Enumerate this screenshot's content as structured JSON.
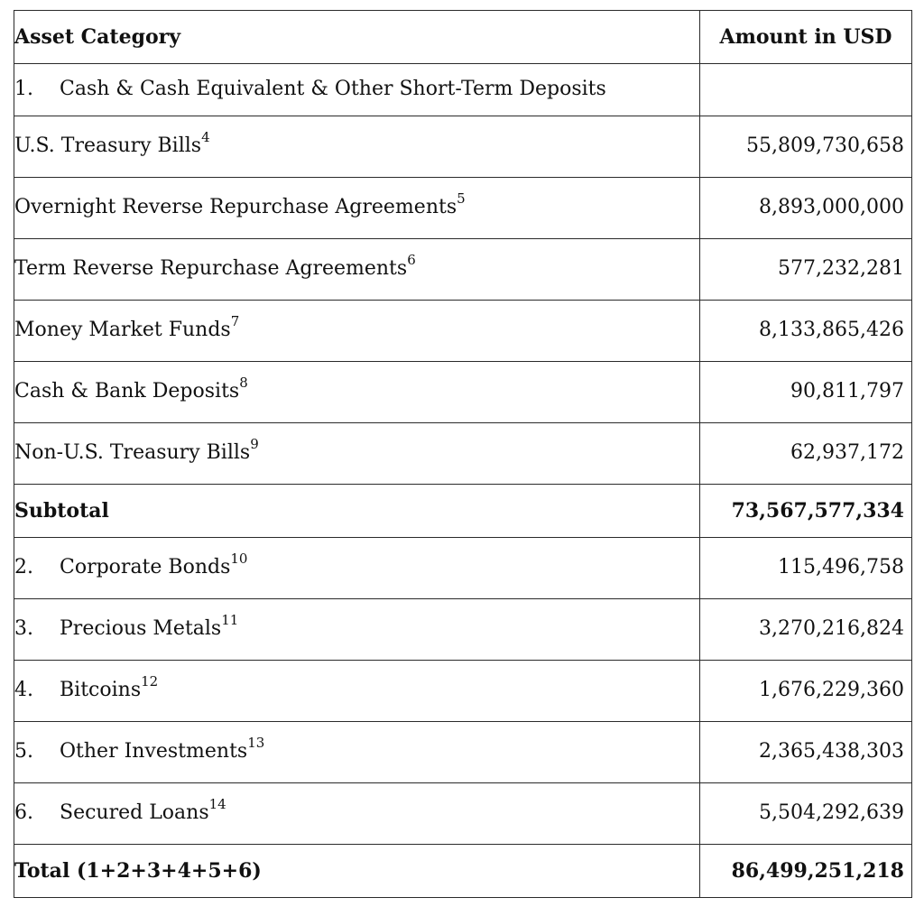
{
  "table": {
    "header": {
      "category": "Asset Category",
      "amount": "Amount in USD"
    },
    "section_1": {
      "number": "1.",
      "label": "Cash & Cash Equivalent & Other Short-Term Deposits",
      "amount": "",
      "items": [
        {
          "label": "U.S. Treasury Bills",
          "footnote": "4",
          "amount": "55,809,730,658"
        },
        {
          "label": "Overnight Reverse Repurchase Agreements",
          "footnote": "5",
          "amount": "8,893,000,000"
        },
        {
          "label": "Term Reverse Repurchase Agreements",
          "footnote": "6",
          "amount": "577,232,281"
        },
        {
          "label": "Money Market Funds",
          "footnote": "7",
          "amount": "8,133,865,426"
        },
        {
          "label": "Cash & Bank Deposits",
          "footnote": "8",
          "amount": "90,811,797"
        },
        {
          "label": "Non-U.S. Treasury Bills",
          "footnote": "9",
          "amount": "62,937,172"
        }
      ]
    },
    "subtotal": {
      "label": "Subtotal",
      "amount": "73,567,577,334"
    },
    "other_sections": [
      {
        "number": "2.",
        "label": "Corporate Bonds",
        "footnote": "10",
        "amount": "115,496,758"
      },
      {
        "number": "3.",
        "label": "Precious Metals",
        "footnote": "11",
        "amount": "3,270,216,824"
      },
      {
        "number": "4.",
        "label": "Bitcoins",
        "footnote": "12",
        "amount": "1,676,229,360"
      },
      {
        "number": "5.",
        "label": "Other Investments",
        "footnote": "13",
        "amount": "2,365,438,303"
      },
      {
        "number": "6.",
        "label": "Secured Loans",
        "footnote": "14",
        "amount": "5,504,292,639"
      }
    ],
    "total": {
      "label": "Total (1+2+3+4+5+6)",
      "amount": "86,499,251,218"
    }
  }
}
